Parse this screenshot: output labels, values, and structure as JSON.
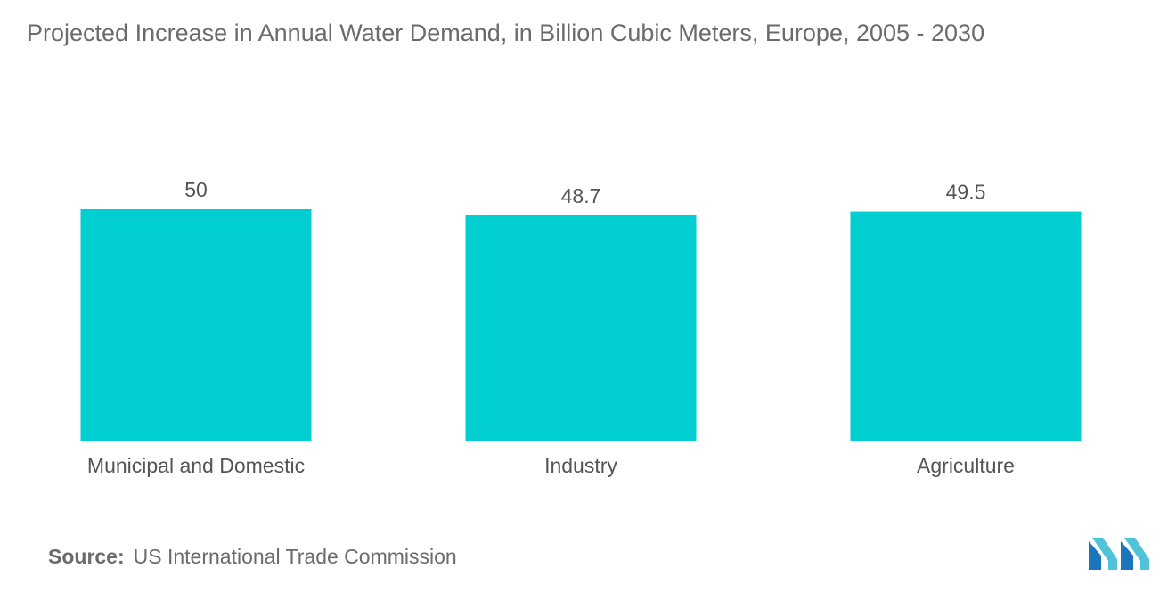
{
  "chart_data": {
    "type": "bar",
    "title": "Projected Increase in Annual Water Demand, in Billion Cubic Meters, Europe, 2005 - 2030",
    "categories": [
      "Municipal and Domestic",
      "Industry",
      "Agriculture"
    ],
    "values": [
      50,
      48.7,
      49.5
    ],
    "value_labels": [
      "50",
      "48.7",
      "49.5"
    ],
    "xlabel": "",
    "ylabel": "",
    "ylim": [
      0,
      50
    ],
    "grid": false,
    "legend": "none",
    "bar_color": "#00ced1"
  },
  "source": {
    "label": "Source:",
    "text": "US International Trade Commission"
  },
  "logo": {
    "icon": "mordor-intelligence-logo",
    "colors": [
      "#1b75bc",
      "#4fc3d8"
    ]
  }
}
